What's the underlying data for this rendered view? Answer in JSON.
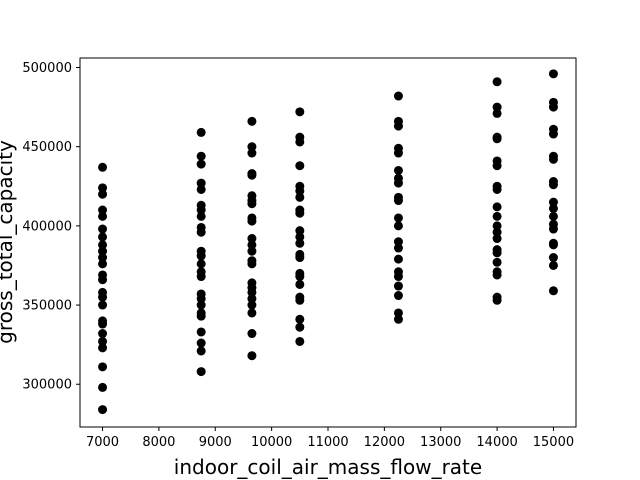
{
  "chart_data": {
    "type": "scatter",
    "title": "",
    "xlabel": "indoor_coil_air_mass_flow_rate",
    "ylabel": "gross_total_capacity",
    "xlim": [
      6600,
      15400
    ],
    "ylim": [
      273000,
      506000
    ],
    "xticks": [
      7000,
      8000,
      9000,
      10000,
      11000,
      12000,
      13000,
      14000,
      15000
    ],
    "yticks": [
      300000,
      350000,
      400000,
      450000,
      500000
    ],
    "grid": false,
    "marker_color": "#000000",
    "series": [
      {
        "points": [
          [
            7000,
            437000
          ],
          [
            7000,
            424000
          ],
          [
            7000,
            420000
          ],
          [
            7000,
            410000
          ],
          [
            7000,
            406000
          ],
          [
            7000,
            398000
          ],
          [
            7000,
            393000
          ],
          [
            7000,
            388000
          ],
          [
            7000,
            384000
          ],
          [
            7000,
            380000
          ],
          [
            7000,
            376000
          ],
          [
            7000,
            369000
          ],
          [
            7000,
            366000
          ],
          [
            7000,
            358000
          ],
          [
            7000,
            355000
          ],
          [
            7000,
            350000
          ],
          [
            7000,
            340000
          ],
          [
            7000,
            338000
          ],
          [
            7000,
            332000
          ],
          [
            7000,
            327000
          ],
          [
            7000,
            323000
          ],
          [
            7000,
            311000
          ],
          [
            7000,
            298000
          ],
          [
            7000,
            284000
          ],
          [
            8750,
            459000
          ],
          [
            8750,
            444000
          ],
          [
            8750,
            439000
          ],
          [
            8750,
            427000
          ],
          [
            8750,
            423000
          ],
          [
            8750,
            413000
          ],
          [
            8750,
            410000
          ],
          [
            8750,
            406000
          ],
          [
            8750,
            399000
          ],
          [
            8750,
            396000
          ],
          [
            8750,
            384000
          ],
          [
            8750,
            381000
          ],
          [
            8750,
            376000
          ],
          [
            8750,
            371000
          ],
          [
            8750,
            368000
          ],
          [
            8750,
            357000
          ],
          [
            8750,
            354000
          ],
          [
            8750,
            350000
          ],
          [
            8750,
            345000
          ],
          [
            8750,
            343000
          ],
          [
            8750,
            333000
          ],
          [
            8750,
            326000
          ],
          [
            8750,
            321000
          ],
          [
            8750,
            308000
          ],
          [
            9650,
            466000
          ],
          [
            9650,
            450000
          ],
          [
            9650,
            446000
          ],
          [
            9650,
            433000
          ],
          [
            9650,
            432000
          ],
          [
            9650,
            419000
          ],
          [
            9650,
            416000
          ],
          [
            9650,
            414000
          ],
          [
            9650,
            405000
          ],
          [
            9650,
            403000
          ],
          [
            9650,
            392000
          ],
          [
            9650,
            388000
          ],
          [
            9650,
            384000
          ],
          [
            9650,
            378000
          ],
          [
            9650,
            376000
          ],
          [
            9650,
            364000
          ],
          [
            9650,
            361000
          ],
          [
            9650,
            358000
          ],
          [
            9650,
            354000
          ],
          [
            9650,
            350000
          ],
          [
            9650,
            345000
          ],
          [
            9650,
            332000
          ],
          [
            9650,
            318000
          ],
          [
            10500,
            472000
          ],
          [
            10500,
            456000
          ],
          [
            10500,
            453000
          ],
          [
            10500,
            438000
          ],
          [
            10500,
            425000
          ],
          [
            10500,
            422000
          ],
          [
            10500,
            418000
          ],
          [
            10500,
            410000
          ],
          [
            10500,
            408000
          ],
          [
            10500,
            397000
          ],
          [
            10500,
            393000
          ],
          [
            10500,
            389000
          ],
          [
            10500,
            382000
          ],
          [
            10500,
            380000
          ],
          [
            10500,
            370000
          ],
          [
            10500,
            368000
          ],
          [
            10500,
            363000
          ],
          [
            10500,
            355000
          ],
          [
            10500,
            353000
          ],
          [
            10500,
            341000
          ],
          [
            10500,
            336000
          ],
          [
            10500,
            327000
          ],
          [
            12250,
            482000
          ],
          [
            12250,
            466000
          ],
          [
            12250,
            463000
          ],
          [
            12250,
            449000
          ],
          [
            12250,
            446000
          ],
          [
            12250,
            435000
          ],
          [
            12250,
            430000
          ],
          [
            12250,
            427000
          ],
          [
            12250,
            418000
          ],
          [
            12250,
            416000
          ],
          [
            12250,
            405000
          ],
          [
            12250,
            400000
          ],
          [
            12250,
            390000
          ],
          [
            12250,
            386000
          ],
          [
            12250,
            379000
          ],
          [
            12250,
            371000
          ],
          [
            12250,
            368000
          ],
          [
            12250,
            362000
          ],
          [
            12250,
            356000
          ],
          [
            12250,
            345000
          ],
          [
            12250,
            341000
          ],
          [
            14000,
            491000
          ],
          [
            14000,
            475000
          ],
          [
            14000,
            471000
          ],
          [
            14000,
            456000
          ],
          [
            14000,
            455000
          ],
          [
            14000,
            441000
          ],
          [
            14000,
            438000
          ],
          [
            14000,
            425000
          ],
          [
            14000,
            423000
          ],
          [
            14000,
            412000
          ],
          [
            14000,
            406000
          ],
          [
            14000,
            400000
          ],
          [
            14000,
            396000
          ],
          [
            14000,
            392000
          ],
          [
            14000,
            385000
          ],
          [
            14000,
            383000
          ],
          [
            14000,
            377000
          ],
          [
            14000,
            371000
          ],
          [
            14000,
            369000
          ],
          [
            14000,
            355000
          ],
          [
            14000,
            353000
          ],
          [
            15000,
            496000
          ],
          [
            15000,
            478000
          ],
          [
            15000,
            475000
          ],
          [
            15000,
            461000
          ],
          [
            15000,
            458000
          ],
          [
            15000,
            444000
          ],
          [
            15000,
            442000
          ],
          [
            15000,
            428000
          ],
          [
            15000,
            426000
          ],
          [
            15000,
            415000
          ],
          [
            15000,
            411000
          ],
          [
            15000,
            406000
          ],
          [
            15000,
            401000
          ],
          [
            15000,
            398000
          ],
          [
            15000,
            389000
          ],
          [
            15000,
            388000
          ],
          [
            15000,
            380000
          ],
          [
            15000,
            375000
          ],
          [
            15000,
            359000
          ]
        ]
      }
    ]
  }
}
